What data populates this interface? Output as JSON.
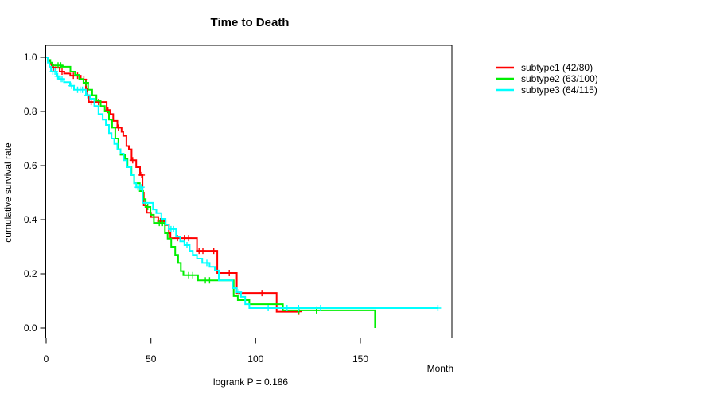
{
  "chart_data": {
    "type": "line",
    "subtype": "kaplan-meier-step",
    "title": "Time to Death",
    "xlabel": "Month",
    "ylabel": "cumulative survival rate",
    "annotation": "logrank P = 0.186",
    "x_range": [
      0,
      193
    ],
    "y_range": [
      0.0,
      1.0
    ],
    "grid": false,
    "legend_position": "right-outside",
    "x_ticks": [
      {
        "value": 0,
        "label": "0"
      },
      {
        "value": 50,
        "label": "50"
      },
      {
        "value": 100,
        "label": "100"
      },
      {
        "value": 150,
        "label": "150"
      }
    ],
    "y_ticks": [
      {
        "value": 0.0,
        "label": "0.0"
      },
      {
        "value": 0.2,
        "label": "0.2"
      },
      {
        "value": 0.4,
        "label": "0.4"
      },
      {
        "value": 0.6,
        "label": "0.6"
      },
      {
        "value": 0.8,
        "label": "0.8"
      },
      {
        "value": 1.0,
        "label": "1.0"
      }
    ],
    "series": [
      {
        "name": "subtype1 (42/80)",
        "events": 42,
        "n": 80,
        "color": "#ff0000",
        "steps": [
          [
            0,
            1.0
          ],
          [
            0.8,
            0.987
          ],
          [
            1.6,
            0.975
          ],
          [
            2.6,
            0.962
          ],
          [
            6.5,
            0.947
          ],
          [
            8.6,
            0.94
          ],
          [
            11.5,
            0.932
          ],
          [
            16.5,
            0.918
          ],
          [
            19.0,
            0.885
          ],
          [
            19.7,
            0.86
          ],
          [
            20.4,
            0.835
          ],
          [
            28.9,
            0.805
          ],
          [
            30.5,
            0.79
          ],
          [
            32.0,
            0.765
          ],
          [
            34.0,
            0.74
          ],
          [
            36.0,
            0.725
          ],
          [
            36.8,
            0.71
          ],
          [
            38.3,
            0.672
          ],
          [
            39.5,
            0.66
          ],
          [
            40.8,
            0.62
          ],
          [
            43.0,
            0.594
          ],
          [
            44.8,
            0.565
          ],
          [
            46.0,
            0.5
          ],
          [
            46.6,
            0.453
          ],
          [
            48.0,
            0.426
          ],
          [
            50.0,
            0.41
          ],
          [
            53.5,
            0.394
          ],
          [
            57.0,
            0.38
          ],
          [
            58.6,
            0.35
          ],
          [
            59.3,
            0.332
          ],
          [
            72.0,
            0.285
          ],
          [
            81.7,
            0.203
          ],
          [
            91.0,
            0.129
          ],
          [
            110.0,
            0.06
          ],
          [
            121.0,
            0.06
          ]
        ],
        "censors": [
          [
            3.5,
            0.962
          ],
          [
            4.7,
            0.962
          ],
          [
            7.6,
            0.947
          ],
          [
            13.0,
            0.932
          ],
          [
            15.0,
            0.932
          ],
          [
            18.0,
            0.918
          ],
          [
            21.5,
            0.835
          ],
          [
            23.0,
            0.835
          ],
          [
            25.0,
            0.835
          ],
          [
            29.5,
            0.805
          ],
          [
            34.5,
            0.74
          ],
          [
            41.3,
            0.62
          ],
          [
            45.6,
            0.565
          ],
          [
            54.5,
            0.394
          ],
          [
            62.7,
            0.332
          ],
          [
            66.0,
            0.332
          ],
          [
            68.0,
            0.332
          ],
          [
            73.0,
            0.285
          ],
          [
            74.8,
            0.285
          ],
          [
            80.0,
            0.285
          ],
          [
            87.4,
            0.203
          ],
          [
            103.0,
            0.129
          ],
          [
            120.6,
            0.06
          ]
        ]
      },
      {
        "name": "subtype2 (63/100)",
        "events": 63,
        "n": 100,
        "color": "#00ee00",
        "steps": [
          [
            0,
            1.0
          ],
          [
            1.0,
            0.99
          ],
          [
            2.0,
            0.98
          ],
          [
            3.0,
            0.97
          ],
          [
            7.6,
            0.965
          ],
          [
            11.6,
            0.947
          ],
          [
            13.8,
            0.935
          ],
          [
            15.8,
            0.92
          ],
          [
            17.8,
            0.906
          ],
          [
            20.0,
            0.88
          ],
          [
            22.0,
            0.86
          ],
          [
            24.0,
            0.84
          ],
          [
            26.0,
            0.82
          ],
          [
            28.0,
            0.8
          ],
          [
            30.0,
            0.77
          ],
          [
            31.5,
            0.74
          ],
          [
            33.0,
            0.7
          ],
          [
            34.5,
            0.66
          ],
          [
            35.5,
            0.64
          ],
          [
            37.6,
            0.624
          ],
          [
            38.8,
            0.594
          ],
          [
            40.7,
            0.565
          ],
          [
            42.0,
            0.535
          ],
          [
            44.7,
            0.506
          ],
          [
            46.3,
            0.476
          ],
          [
            47.5,
            0.447
          ],
          [
            49.8,
            0.418
          ],
          [
            51.4,
            0.388
          ],
          [
            56.7,
            0.35
          ],
          [
            58.0,
            0.33
          ],
          [
            59.7,
            0.3
          ],
          [
            61.6,
            0.27
          ],
          [
            63.0,
            0.24
          ],
          [
            64.3,
            0.21
          ],
          [
            65.5,
            0.195
          ],
          [
            72.5,
            0.176
          ],
          [
            89.5,
            0.118
          ],
          [
            91.5,
            0.103
          ],
          [
            97.0,
            0.088
          ],
          [
            113.0,
            0.065
          ],
          [
            157.0,
            0.0
          ]
        ],
        "censors": [
          [
            5.7,
            0.97
          ],
          [
            7.0,
            0.97
          ],
          [
            19.0,
            0.906
          ],
          [
            48.5,
            0.447
          ],
          [
            54.0,
            0.388
          ],
          [
            55.5,
            0.388
          ],
          [
            68.0,
            0.195
          ],
          [
            70.0,
            0.195
          ],
          [
            76.0,
            0.176
          ],
          [
            78.0,
            0.176
          ],
          [
            120.6,
            0.065
          ],
          [
            129.0,
            0.065
          ]
        ]
      },
      {
        "name": "subtype3 (64/115)",
        "events": 64,
        "n": 115,
        "color": "#00ffff",
        "steps": [
          [
            0,
            1.0
          ],
          [
            0.8,
            0.98
          ],
          [
            1.5,
            0.965
          ],
          [
            2.3,
            0.947
          ],
          [
            5.0,
            0.93
          ],
          [
            6.0,
            0.92
          ],
          [
            8.5,
            0.908
          ],
          [
            11.4,
            0.895
          ],
          [
            13.3,
            0.88
          ],
          [
            19.0,
            0.86
          ],
          [
            21.0,
            0.847
          ],
          [
            23.0,
            0.82
          ],
          [
            25.0,
            0.79
          ],
          [
            27.0,
            0.77
          ],
          [
            28.5,
            0.75
          ],
          [
            30.0,
            0.72
          ],
          [
            31.2,
            0.7
          ],
          [
            32.5,
            0.68
          ],
          [
            34.0,
            0.66
          ],
          [
            35.5,
            0.644
          ],
          [
            37.0,
            0.62
          ],
          [
            38.5,
            0.594
          ],
          [
            40.5,
            0.565
          ],
          [
            42.0,
            0.535
          ],
          [
            43.0,
            0.52
          ],
          [
            46.0,
            0.462
          ],
          [
            51.0,
            0.438
          ],
          [
            52.6,
            0.424
          ],
          [
            55.0,
            0.403
          ],
          [
            57.0,
            0.382
          ],
          [
            58.5,
            0.365
          ],
          [
            62.0,
            0.338
          ],
          [
            64.0,
            0.32
          ],
          [
            66.0,
            0.306
          ],
          [
            68.5,
            0.285
          ],
          [
            70.0,
            0.27
          ],
          [
            72.0,
            0.256
          ],
          [
            74.5,
            0.24
          ],
          [
            78.0,
            0.226
          ],
          [
            80.5,
            0.212
          ],
          [
            82.4,
            0.176
          ],
          [
            89.0,
            0.147
          ],
          [
            91.0,
            0.132
          ],
          [
            93.0,
            0.115
          ],
          [
            95.0,
            0.088
          ],
          [
            97.0,
            0.0735
          ],
          [
            187.0,
            0.0735
          ]
        ],
        "censors": [
          [
            3.2,
            0.947
          ],
          [
            4.2,
            0.947
          ],
          [
            5.5,
            0.93
          ],
          [
            6.8,
            0.92
          ],
          [
            7.6,
            0.92
          ],
          [
            12.2,
            0.895
          ],
          [
            15.0,
            0.88
          ],
          [
            16.2,
            0.88
          ],
          [
            17.3,
            0.88
          ],
          [
            19.8,
            0.86
          ],
          [
            43.8,
            0.52
          ],
          [
            44.7,
            0.52
          ],
          [
            45.5,
            0.52
          ],
          [
            59.6,
            0.365
          ],
          [
            60.8,
            0.365
          ],
          [
            67.2,
            0.306
          ],
          [
            76.7,
            0.24
          ],
          [
            92.0,
            0.132
          ],
          [
            106.0,
            0.0735
          ],
          [
            115.0,
            0.0735
          ],
          [
            120.5,
            0.0735
          ],
          [
            131.0,
            0.0735
          ],
          [
            187.0,
            0.0735
          ]
        ]
      }
    ]
  }
}
